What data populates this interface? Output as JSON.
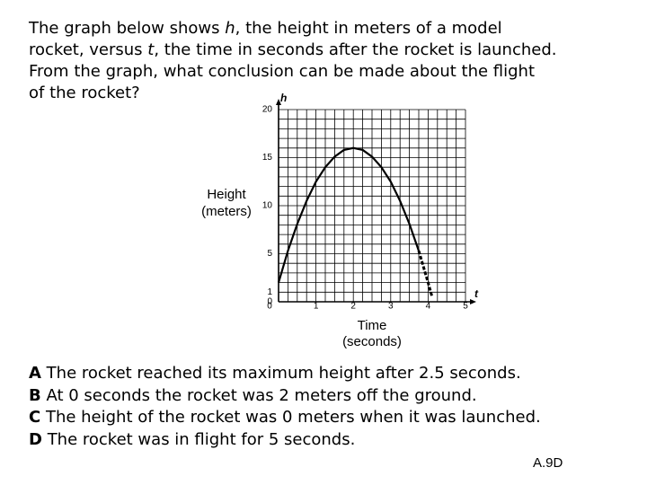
{
  "question": [
    [
      {
        "text": "The graph below shows "
      },
      {
        "text": "h",
        "italic": true
      },
      {
        "text": ", the height in meters of a model"
      }
    ],
    [
      {
        "text": "rocket, versus "
      },
      {
        "text": "t",
        "italic": true
      },
      {
        "text": ", the time in seconds after the rocket is launched."
      }
    ],
    [
      {
        "text": "From the graph, what conclusion can be made about the flight"
      }
    ],
    [
      {
        "text": "of the rocket?"
      }
    ]
  ],
  "chart_data": {
    "type": "line",
    "x": [
      0,
      0.25,
      0.5,
      0.75,
      1,
      1.25,
      1.5,
      1.75,
      2,
      2.25,
      2.5,
      2.75,
      3,
      3.25,
      3.5,
      3.75,
      4,
      4.1
    ],
    "series": [
      {
        "color": "#000000",
        "values": [
          2,
          5.3,
          8.1,
          10.5,
          12.5,
          14,
          15.1,
          15.8,
          16,
          15.8,
          15.1,
          14,
          12.5,
          10.5,
          8.1,
          5.3,
          null,
          null
        ]
      },
      {
        "color": "#000000",
        "dashed": true,
        "values": [
          null,
          null,
          null,
          null,
          null,
          null,
          null,
          null,
          null,
          null,
          null,
          null,
          null,
          null,
          null,
          5.3,
          2,
          0.6
        ]
      }
    ],
    "xlim": [
      0,
      5
    ],
    "ylim": [
      0,
      20
    ],
    "xticks": [
      0,
      1,
      2,
      3,
      4,
      5
    ],
    "yticks": [
      0,
      1,
      5,
      10,
      15,
      20
    ],
    "grid": true,
    "grid_step": {
      "x": 0.25,
      "y": 1
    },
    "x_symbol": "t",
    "y_symbol": "h",
    "xlabel": [
      "Time",
      "(seconds)"
    ],
    "ylabel": [
      "Height",
      "(meters)"
    ]
  },
  "choices": [
    {
      "letter": "A",
      "text": "The rocket reached its maximum height after 2.5 seconds."
    },
    {
      "letter": "B",
      "text": "At 0 seconds the rocket was 2 meters off the ground."
    },
    {
      "letter": "C",
      "text": "The height of the rocket was 0 meters when it was launched."
    },
    {
      "letter": "D",
      "text": "The rocket was in flight for 5 seconds."
    }
  ],
  "footer": "A.9D"
}
